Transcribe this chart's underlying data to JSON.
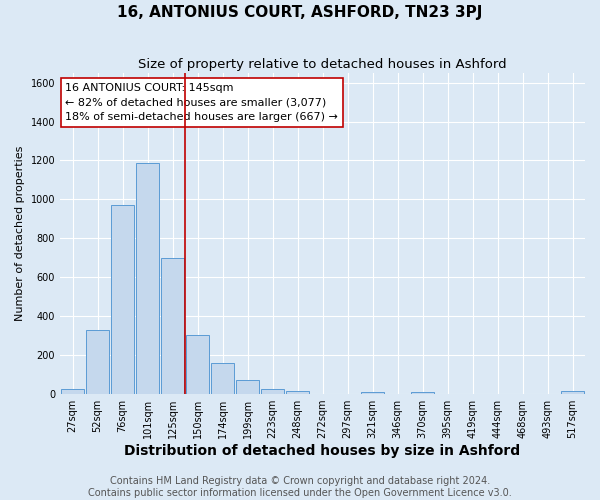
{
  "title": "16, ANTONIUS COURT, ASHFORD, TN23 3PJ",
  "subtitle": "Size of property relative to detached houses in Ashford",
  "xlabel": "Distribution of detached houses by size in Ashford",
  "ylabel": "Number of detached properties",
  "bar_labels": [
    "27sqm",
    "52sqm",
    "76sqm",
    "101sqm",
    "125sqm",
    "150sqm",
    "174sqm",
    "199sqm",
    "223sqm",
    "248sqm",
    "272sqm",
    "297sqm",
    "321sqm",
    "346sqm",
    "370sqm",
    "395sqm",
    "419sqm",
    "444sqm",
    "468sqm",
    "493sqm",
    "517sqm"
  ],
  "bar_values": [
    25,
    325,
    970,
    1185,
    700,
    300,
    155,
    70,
    25,
    15,
    0,
    0,
    10,
    0,
    10,
    0,
    0,
    0,
    0,
    0,
    12
  ],
  "bar_color": "#c5d8ed",
  "bar_edge_color": "#5b9bd5",
  "vline_color": "#c00000",
  "annotation_line1": "16 ANTONIUS COURT: 145sqm",
  "annotation_line2": "← 82% of detached houses are smaller (3,077)",
  "annotation_line3": "18% of semi-detached houses are larger (667) →",
  "annotation_box_color": "#ffffff",
  "annotation_box_edge_color": "#c00000",
  "ylim": [
    0,
    1650
  ],
  "yticks": [
    0,
    200,
    400,
    600,
    800,
    1000,
    1200,
    1400,
    1600
  ],
  "bg_color": "#dce9f5",
  "grid_color": "#ffffff",
  "footer_text": "Contains HM Land Registry data © Crown copyright and database right 2024.\nContains public sector information licensed under the Open Government Licence v3.0.",
  "title_fontsize": 11,
  "subtitle_fontsize": 9.5,
  "xlabel_fontsize": 10,
  "ylabel_fontsize": 8,
  "tick_fontsize": 7,
  "annotation_fontsize": 8,
  "footer_fontsize": 7
}
